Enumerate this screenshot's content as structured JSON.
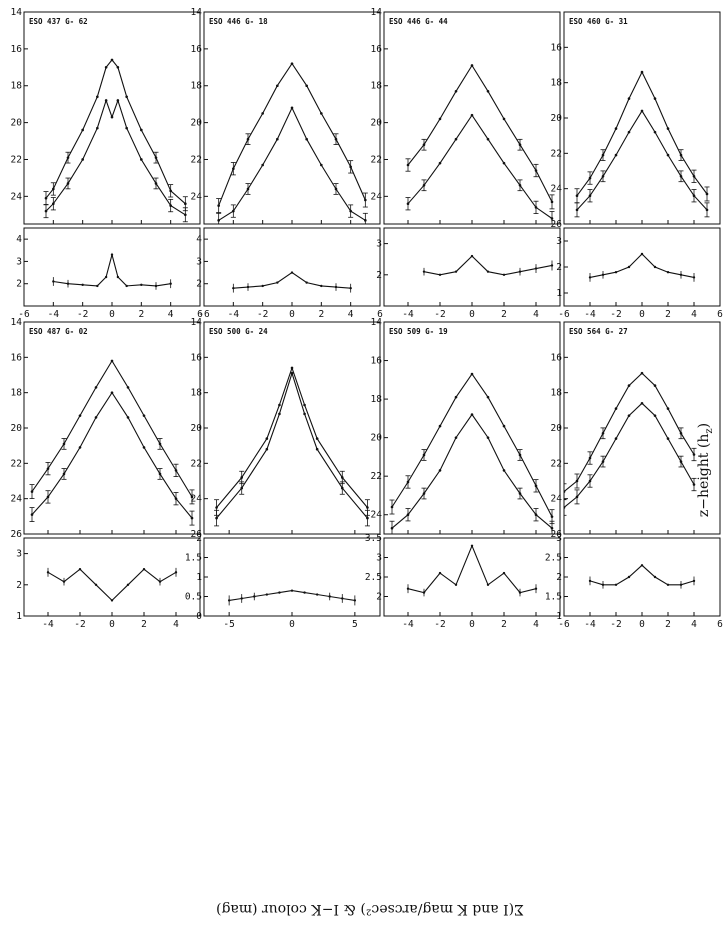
{
  "figure": {
    "xlabel": "z−height (h_z)",
    "xlabel_main": "z−height (h",
    "xlabel_sub": "z",
    "xlabel_tail": ")",
    "ylabel": "Σ(I and K mag/arcsec²) & I−K colour (mag)"
  },
  "chart_data": [
    {
      "type": "line",
      "title": "ESO 437 G- 62",
      "x": [
        -4.5,
        -4,
        -3,
        -2,
        -1,
        -0.4,
        0,
        0.4,
        1,
        2,
        3,
        4,
        5
      ],
      "series": [
        {
          "values": [
            24.1,
            23.6,
            21.9,
            20.4,
            18.6,
            17.0,
            16.6,
            17.0,
            18.6,
            20.4,
            21.9,
            23.7,
            24.4
          ]
        },
        {
          "values": [
            24.8,
            24.4,
            23.3,
            22.0,
            20.3,
            18.8,
            19.7,
            18.8,
            20.3,
            22.0,
            23.3,
            24.5,
            25.0
          ]
        }
      ],
      "colour": {
        "x": [
          -4,
          -3,
          -2,
          -1,
          -0.4,
          0,
          0.4,
          1,
          2,
          3,
          4
        ],
        "values": [
          2.1,
          2.0,
          1.95,
          1.9,
          2.3,
          3.3,
          2.3,
          1.9,
          1.95,
          1.9,
          2.0
        ]
      },
      "xlim": [
        -6,
        6
      ],
      "ylim_top": [
        14,
        25.5
      ],
      "ylim_bottom": [
        1,
        4.5
      ],
      "xticks": [
        "-6",
        "-4",
        "-2",
        "0",
        "2",
        "4",
        "6"
      ],
      "yticks_top": [
        "14",
        "16",
        "18",
        "20",
        "22",
        "24"
      ],
      "yticks_bottom": [
        "2",
        "3",
        "4"
      ]
    },
    {
      "type": "line",
      "title": "ESO 446 G- 18",
      "x": [
        -5,
        -4,
        -3,
        -2,
        -1,
        0,
        1,
        2,
        3,
        4,
        5
      ],
      "series": [
        {
          "values": [
            24.5,
            22.5,
            20.9,
            19.5,
            18.0,
            16.8,
            18.0,
            19.5,
            20.9,
            22.4,
            24.2
          ]
        },
        {
          "values": [
            25.3,
            24.8,
            23.6,
            22.3,
            20.9,
            19.2,
            20.9,
            22.3,
            23.6,
            24.8,
            25.3
          ]
        }
      ],
      "colour": {
        "x": [
          -4,
          -3,
          -2,
          -1,
          0,
          1,
          2,
          3,
          4
        ],
        "values": [
          1.8,
          1.85,
          1.9,
          2.05,
          2.5,
          2.05,
          1.9,
          1.85,
          1.8
        ]
      },
      "xlim": [
        -6,
        6
      ],
      "ylim_top": [
        14,
        25.5
      ],
      "ylim_bottom": [
        1,
        4.5
      ],
      "xticks": [
        "-6",
        "-4",
        "-2",
        "0",
        "2",
        "4",
        "6"
      ],
      "yticks_top": [
        "14",
        "16",
        "18",
        "20",
        "22",
        "24"
      ],
      "yticks_bottom": [
        "2",
        "3",
        "4"
      ]
    },
    {
      "type": "line",
      "title": "ESO 446 G- 44",
      "x": [
        -4,
        -3,
        -2,
        -1,
        0,
        1,
        2,
        3,
        4,
        5
      ],
      "series": [
        {
          "values": [
            22.3,
            21.2,
            19.8,
            18.3,
            16.9,
            18.3,
            19.8,
            21.2,
            22.6,
            24.3
          ]
        },
        {
          "values": [
            24.4,
            23.4,
            22.2,
            20.9,
            19.6,
            20.9,
            22.2,
            23.4,
            24.6,
            25.2
          ]
        }
      ],
      "colour": {
        "x": [
          -3,
          -2,
          -1,
          0,
          1,
          2,
          3,
          4,
          5
        ],
        "values": [
          2.1,
          2.0,
          2.1,
          2.6,
          2.1,
          2.0,
          2.1,
          2.2,
          2.3
        ]
      },
      "xlim": [
        -5.5,
        5.5
      ],
      "ylim_top": [
        14,
        25.5
      ],
      "ylim_bottom": [
        1,
        3.5
      ],
      "xticks": [
        "-4",
        "-2",
        "0",
        "2",
        "4"
      ],
      "yticks_top": [
        "14",
        "16",
        "18",
        "20",
        "22",
        "24"
      ],
      "yticks_bottom": [
        "2",
        "3"
      ]
    },
    {
      "type": "line",
      "title": "ESO 460 G- 31",
      "x": [
        -5,
        -4,
        -3,
        -2,
        -1,
        0,
        1,
        2,
        3,
        4,
        5
      ],
      "series": [
        {
          "values": [
            24.4,
            23.4,
            22.1,
            20.6,
            18.9,
            17.4,
            18.9,
            20.6,
            22.1,
            23.3,
            24.3
          ]
        },
        {
          "values": [
            25.2,
            24.4,
            23.3,
            22.1,
            20.8,
            19.6,
            20.8,
            22.1,
            23.3,
            24.4,
            25.2
          ]
        }
      ],
      "colour": {
        "x": [
          -4,
          -3,
          -2,
          -1,
          0,
          1,
          2,
          3,
          4
        ],
        "values": [
          1.6,
          1.7,
          1.8,
          2.0,
          2.5,
          2.0,
          1.8,
          1.7,
          1.6
        ]
      },
      "xlim": [
        -6,
        6
      ],
      "ylim_top": [
        14,
        26
      ],
      "ylim_bottom": [
        0.5,
        3.5
      ],
      "xticks": [
        "-6",
        "-4",
        "-2",
        "0",
        "2",
        "4",
        "6"
      ],
      "yticks_top": [
        "16",
        "18",
        "20",
        "22",
        "24",
        "26"
      ],
      "yticks_bottom": [
        "1",
        "2",
        "3"
      ]
    },
    {
      "type": "line",
      "title": "ESO 487 G- 02",
      "x": [
        -5,
        -4,
        -3,
        -2,
        -1,
        0,
        1,
        2,
        3,
        4,
        5
      ],
      "series": [
        {
          "values": [
            23.6,
            22.3,
            20.9,
            19.3,
            17.7,
            16.2,
            17.7,
            19.3,
            20.9,
            22.4,
            23.9
          ]
        },
        {
          "values": [
            24.9,
            23.9,
            22.6,
            21.1,
            19.4,
            18.0,
            19.4,
            21.1,
            22.6,
            24.0,
            25.1
          ]
        }
      ],
      "colour": {
        "x": [
          -4,
          -3,
          -2,
          -1,
          0,
          1,
          2,
          3,
          4
        ],
        "values": [
          2.4,
          2.1,
          2.5,
          2.0,
          1.5,
          2.0,
          2.5,
          2.1,
          2.4
        ]
      },
      "xlim": [
        -5.5,
        5.5
      ],
      "ylim_top": [
        14,
        26
      ],
      "ylim_bottom": [
        1,
        3.5
      ],
      "xticks": [
        "-4",
        "-2",
        "0",
        "2",
        "4"
      ],
      "yticks_top": [
        "14",
        "16",
        "18",
        "20",
        "22",
        "24",
        "26"
      ],
      "yticks_bottom": [
        "1",
        "2",
        "3"
      ]
    },
    {
      "type": "line",
      "title": "ESO 500 G- 24",
      "x": [
        -6,
        -4,
        -2,
        -1,
        0,
        1,
        2,
        4,
        6
      ],
      "series": [
        {
          "values": [
            24.5,
            22.8,
            20.6,
            18.7,
            16.6,
            18.7,
            20.6,
            22.8,
            24.5
          ]
        },
        {
          "values": [
            25.1,
            23.4,
            21.2,
            19.2,
            16.9,
            19.2,
            21.2,
            23.4,
            25.1
          ]
        }
      ],
      "colour": {
        "x": [
          -5,
          -4,
          -3,
          -2,
          -1,
          0,
          1,
          2,
          3,
          4,
          5
        ],
        "values": [
          0.4,
          0.45,
          0.5,
          0.55,
          0.6,
          0.65,
          0.6,
          0.55,
          0.5,
          0.45,
          0.4
        ]
      },
      "xlim": [
        -7,
        7
      ],
      "ylim_top": [
        14,
        26
      ],
      "ylim_bottom": [
        0,
        2
      ],
      "xticks": [
        "-5",
        "0",
        "5"
      ],
      "yticks_top": [
        "14",
        "16",
        "18",
        "20",
        "22",
        "24",
        "26"
      ],
      "yticks_bottom": [
        "0",
        "0.5",
        "1",
        "1.5",
        "2"
      ]
    },
    {
      "type": "line",
      "title": "ESO 509 G- 19",
      "x": [
        -5,
        -4,
        -3,
        -2,
        -1,
        0,
        1,
        2,
        3,
        4,
        5
      ],
      "series": [
        {
          "values": [
            23.6,
            22.3,
            20.9,
            19.4,
            17.9,
            16.7,
            17.9,
            19.4,
            20.9,
            22.5,
            24.1
          ]
        },
        {
          "values": [
            24.7,
            24.0,
            22.9,
            21.7,
            20.0,
            18.8,
            20.0,
            21.7,
            22.9,
            24.0,
            24.7
          ]
        }
      ],
      "colour": {
        "x": [
          -4,
          -3,
          -2,
          -1,
          0,
          1,
          2,
          3,
          4
        ],
        "values": [
          2.2,
          2.1,
          2.6,
          2.3,
          3.3,
          2.3,
          2.6,
          2.1,
          2.2
        ]
      },
      "xlim": [
        -5.5,
        5.5
      ],
      "ylim_top": [
        14,
        25
      ],
      "ylim_bottom": [
        1.5,
        3.5
      ],
      "xticks": [
        "-4",
        "-2",
        "0",
        "2",
        "4"
      ],
      "yticks_top": [
        "14",
        "16",
        "18",
        "20",
        "22",
        "24"
      ],
      "yticks_bottom": [
        "2",
        "2.5",
        "3",
        "3.5"
      ]
    },
    {
      "type": "line",
      "title": "ESO 564 G- 27",
      "x": [
        -6,
        -5,
        -4,
        -3,
        -2,
        -1,
        0,
        1,
        2,
        3,
        4
      ],
      "series": [
        {
          "values": [
            23.6,
            23.0,
            21.7,
            20.3,
            18.9,
            17.6,
            16.9,
            17.6,
            18.9,
            20.3,
            21.5
          ]
        },
        {
          "values": [
            24.5,
            23.9,
            23.0,
            21.9,
            20.6,
            19.3,
            18.6,
            19.3,
            20.6,
            21.9,
            23.2
          ]
        }
      ],
      "colour": {
        "x": [
          -4,
          -3,
          -2,
          -1,
          0,
          1,
          2,
          3,
          4
        ],
        "values": [
          1.9,
          1.8,
          1.8,
          2.0,
          2.3,
          2.0,
          1.8,
          1.8,
          1.9
        ]
      },
      "xlim": [
        -6,
        6
      ],
      "ylim_top": [
        14,
        26
      ],
      "ylim_bottom": [
        1,
        3
      ],
      "xticks": [
        "-6",
        "-4",
        "-2",
        "0",
        "2",
        "4",
        "6"
      ],
      "yticks_top": [
        "16",
        "18",
        "20",
        "22",
        "24",
        "26"
      ],
      "yticks_bottom": [
        "1",
        "1.5",
        "2",
        "2.5",
        "3"
      ]
    }
  ]
}
